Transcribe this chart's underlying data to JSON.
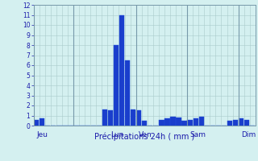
{
  "title": "",
  "xlabel": "Précipitations 24h ( mm )",
  "ylabel": "",
  "background_color": "#d4f0f0",
  "bar_color": "#1a3ecc",
  "bar_color_edge": "#2050dd",
  "ylim": [
    0,
    12
  ],
  "yticks": [
    0,
    1,
    2,
    3,
    4,
    5,
    6,
    7,
    8,
    9,
    10,
    11,
    12
  ],
  "grid_color": "#aacccc",
  "day_labels": [
    "Jeu",
    "Lun",
    "Ven",
    "Sam",
    "Dim"
  ],
  "day_label_bar_indices": [
    0,
    13,
    18,
    27,
    36
  ],
  "vline_bar_indices": [
    0,
    7,
    18,
    27,
    36
  ],
  "num_bars": 39,
  "bar_values": [
    0.6,
    0.7,
    0,
    0,
    0,
    0,
    0,
    0,
    0,
    0,
    0,
    0,
    1.6,
    1.5,
    8.0,
    11.0,
    6.5,
    1.6,
    1.5,
    0.5,
    0,
    0,
    0.6,
    0.7,
    0.9,
    0.8,
    0.5,
    0.6,
    0.7,
    0.9,
    0,
    0,
    0,
    0,
    0.5,
    0.6,
    0.7,
    0.6,
    0
  ]
}
